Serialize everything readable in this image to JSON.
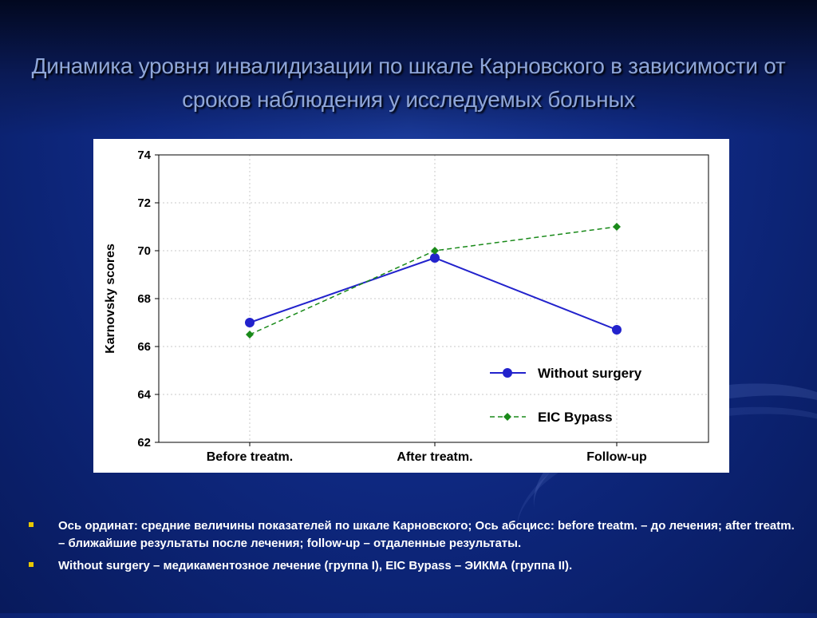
{
  "slide": {
    "title_line1": "Динамика уровня инвалидизации по шкале Карновского в зависимости от",
    "title_line2": "сроков наблюдения у исследуемых больных",
    "notes": [
      "Ось ординат: средние величины показателей по шкале Карновского; Ось абсцисс: before treatm. – до лечения; after treatm. – ближайшие результаты после лечения; follow-up – отдаленные результаты.",
      " Without surgery – медикаментозное лечение (группа I), EIC Bypass – ЭИКМА (группа II)."
    ],
    "colors": {
      "background": "#0f2a85",
      "title": "#8fa6d8",
      "bullet": "#e8c800"
    }
  },
  "chart_data": {
    "type": "line",
    "title": "",
    "xlabel": "",
    "ylabel": "Karnovsky scores",
    "categories": [
      "Before treatm.",
      "After treatm.",
      "Follow-up"
    ],
    "ylim": [
      62,
      74
    ],
    "yticks": [
      62,
      64,
      66,
      68,
      70,
      72,
      74
    ],
    "grid": true,
    "legend_position": "lower-right",
    "series": [
      {
        "name": "Without surgery",
        "values": [
          67.0,
          69.7,
          66.7
        ],
        "color": "#2222cc",
        "style": "solid",
        "marker": "circle"
      },
      {
        "name": "EIC Bypass",
        "values": [
          66.5,
          70.0,
          71.0
        ],
        "color": "#1a8a1a",
        "style": "dashed",
        "marker": "diamond"
      }
    ]
  }
}
